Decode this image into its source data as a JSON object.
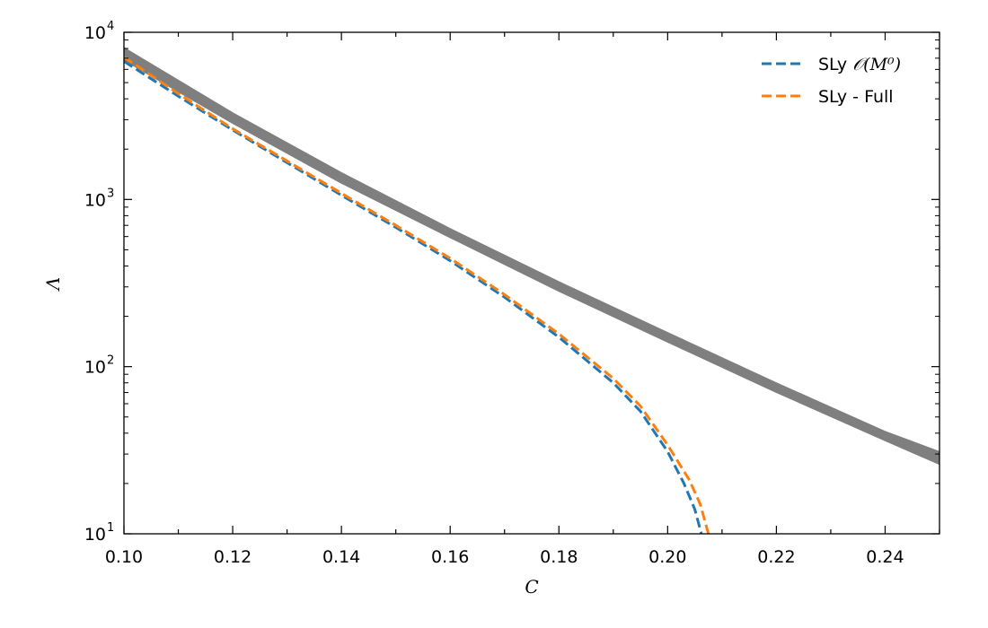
{
  "chart_data": {
    "type": "line",
    "title": "",
    "xlabel": "C",
    "ylabel": "Λ",
    "xlim": [
      0.1,
      0.25
    ],
    "ylim": [
      10,
      10000
    ],
    "yscale": "log",
    "grid": false,
    "legend_position": "top-right",
    "x_tick_labels": [
      "0.10",
      "0.12",
      "0.14",
      "0.16",
      "0.18",
      "0.20",
      "0.22",
      "0.24"
    ],
    "y_tick_labels": [
      {
        "base": "10",
        "exp": "1"
      },
      {
        "base": "10",
        "exp": "2"
      },
      {
        "base": "10",
        "exp": "3"
      },
      {
        "base": "10",
        "exp": "4"
      }
    ],
    "band": {
      "color": "#7f7f7f",
      "x": [
        0.1,
        0.12,
        0.14,
        0.16,
        0.18,
        0.2,
        0.22,
        0.24,
        0.25
      ],
      "lower": [
        6800,
        2850,
        1250,
        590,
        282,
        140,
        70,
        36,
        26
      ],
      "upper": [
        8100,
        3300,
        1450,
        670,
        322,
        160,
        80,
        41,
        31
      ]
    },
    "series": [
      {
        "name": "SLy 𝒪(M⁰)",
        "legend_text": "SLy ",
        "legend_math": "𝒪(M⁰)",
        "color": "#1f77b4",
        "style": "dashed",
        "x": [
          0.1,
          0.11,
          0.12,
          0.13,
          0.14,
          0.15,
          0.16,
          0.17,
          0.18,
          0.19,
          0.195,
          0.2,
          0.203,
          0.205,
          0.2062
        ],
        "y": [
          6700,
          4150,
          2600,
          1660,
          1060,
          680,
          430,
          260,
          150,
          80,
          54,
          31,
          20,
          14,
          10
        ]
      },
      {
        "name": "SLy - Full",
        "legend_text": "SLy - Full",
        "legend_math": "",
        "color": "#ff7f0e",
        "style": "dashed",
        "x": [
          0.1,
          0.11,
          0.12,
          0.13,
          0.14,
          0.15,
          0.16,
          0.17,
          0.18,
          0.19,
          0.195,
          0.2,
          0.204,
          0.206,
          0.2075
        ],
        "y": [
          7100,
          4300,
          2650,
          1700,
          1090,
          700,
          445,
          270,
          157,
          85,
          58,
          34,
          21,
          15,
          10
        ]
      }
    ]
  }
}
